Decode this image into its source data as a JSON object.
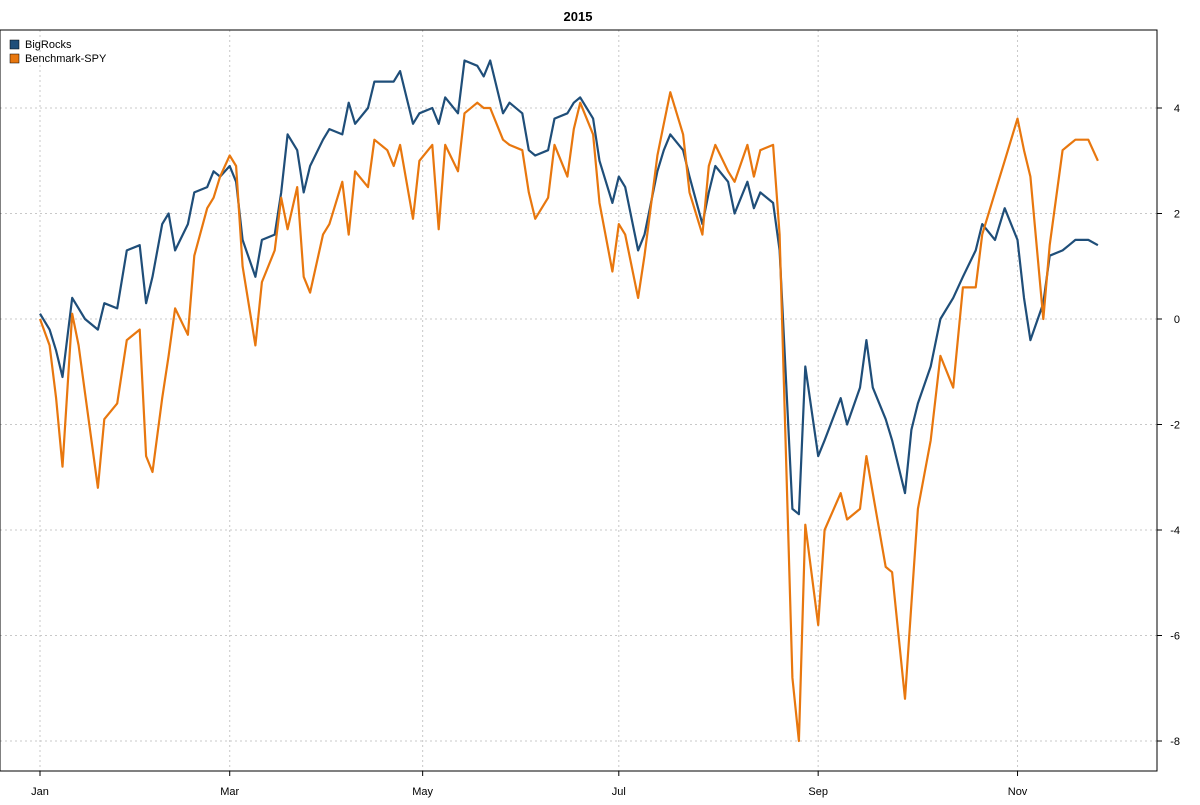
{
  "chart_data": {
    "type": "line",
    "title": "2015",
    "xlabel": "",
    "ylabel": "",
    "x_tick_labels": [
      "Jan",
      "Mar",
      "May",
      "Jul",
      "Sep",
      "Nov"
    ],
    "x_tick_dates": [
      "2015-01-02",
      "2015-03-02",
      "2015-05-01",
      "2015-07-01",
      "2015-09-01",
      "2015-11-02"
    ],
    "xlim": [
      "2015-01-02",
      "2015-12-02"
    ],
    "y_ticks": [
      4,
      2,
      0,
      -2,
      -4,
      -6,
      -8
    ],
    "ylim": [
      -8.5,
      5.5
    ],
    "y_axis_side": "right",
    "grid": true,
    "legend_position": "top-left",
    "series": [
      {
        "name": "BigRocks",
        "color": "#1f4e79",
        "points": [
          [
            "2015-01-02",
            0.1
          ],
          [
            "2015-01-05",
            -0.2
          ],
          [
            "2015-01-07",
            -0.6
          ],
          [
            "2015-01-09",
            -1.1
          ],
          [
            "2015-01-12",
            0.4
          ],
          [
            "2015-01-14",
            0.2
          ],
          [
            "2015-01-16",
            0.0
          ],
          [
            "2015-01-20",
            -0.2
          ],
          [
            "2015-01-22",
            0.3
          ],
          [
            "2015-01-26",
            0.2
          ],
          [
            "2015-01-29",
            1.3
          ],
          [
            "2015-02-02",
            1.4
          ],
          [
            "2015-02-04",
            0.3
          ],
          [
            "2015-02-06",
            0.8
          ],
          [
            "2015-02-09",
            1.8
          ],
          [
            "2015-02-11",
            2.0
          ],
          [
            "2015-02-13",
            1.3
          ],
          [
            "2015-02-17",
            1.8
          ],
          [
            "2015-02-19",
            2.4
          ],
          [
            "2015-02-23",
            2.5
          ],
          [
            "2015-02-25",
            2.8
          ],
          [
            "2015-02-27",
            2.7
          ],
          [
            "2015-03-02",
            2.9
          ],
          [
            "2015-03-04",
            2.6
          ],
          [
            "2015-03-06",
            1.5
          ],
          [
            "2015-03-10",
            0.8
          ],
          [
            "2015-03-12",
            1.5
          ],
          [
            "2015-03-16",
            1.6
          ],
          [
            "2015-03-18",
            2.4
          ],
          [
            "2015-03-20",
            3.5
          ],
          [
            "2015-03-23",
            3.2
          ],
          [
            "2015-03-25",
            2.4
          ],
          [
            "2015-03-27",
            2.9
          ],
          [
            "2015-03-31",
            3.4
          ],
          [
            "2015-04-02",
            3.6
          ],
          [
            "2015-04-06",
            3.5
          ],
          [
            "2015-04-08",
            4.1
          ],
          [
            "2015-04-10",
            3.7
          ],
          [
            "2015-04-14",
            4.0
          ],
          [
            "2015-04-16",
            4.5
          ],
          [
            "2015-04-20",
            4.5
          ],
          [
            "2015-04-22",
            4.5
          ],
          [
            "2015-04-24",
            4.7
          ],
          [
            "2015-04-28",
            3.7
          ],
          [
            "2015-04-30",
            3.9
          ],
          [
            "2015-05-04",
            4.0
          ],
          [
            "2015-05-06",
            3.7
          ],
          [
            "2015-05-08",
            4.2
          ],
          [
            "2015-05-12",
            3.9
          ],
          [
            "2015-05-14",
            4.9
          ],
          [
            "2015-05-18",
            4.8
          ],
          [
            "2015-05-20",
            4.6
          ],
          [
            "2015-05-22",
            4.9
          ],
          [
            "2015-05-26",
            3.9
          ],
          [
            "2015-05-28",
            4.1
          ],
          [
            "2015-06-01",
            3.9
          ],
          [
            "2015-06-03",
            3.2
          ],
          [
            "2015-06-05",
            3.1
          ],
          [
            "2015-06-09",
            3.2
          ],
          [
            "2015-06-11",
            3.8
          ],
          [
            "2015-06-15",
            3.9
          ],
          [
            "2015-06-17",
            4.1
          ],
          [
            "2015-06-19",
            4.2
          ],
          [
            "2015-06-23",
            3.8
          ],
          [
            "2015-06-25",
            3.0
          ],
          [
            "2015-06-29",
            2.2
          ],
          [
            "2015-07-01",
            2.7
          ],
          [
            "2015-07-03",
            2.5
          ],
          [
            "2015-07-07",
            1.3
          ],
          [
            "2015-07-09",
            1.6
          ],
          [
            "2015-07-13",
            2.8
          ],
          [
            "2015-07-15",
            3.2
          ],
          [
            "2015-07-17",
            3.5
          ],
          [
            "2015-07-21",
            3.2
          ],
          [
            "2015-07-23",
            2.7
          ],
          [
            "2015-07-27",
            1.8
          ],
          [
            "2015-07-29",
            2.4
          ],
          [
            "2015-07-31",
            2.9
          ],
          [
            "2015-08-04",
            2.6
          ],
          [
            "2015-08-06",
            2.0
          ],
          [
            "2015-08-10",
            2.6
          ],
          [
            "2015-08-12",
            2.1
          ],
          [
            "2015-08-14",
            2.4
          ],
          [
            "2015-08-18",
            2.2
          ],
          [
            "2015-08-20",
            1.3
          ],
          [
            "2015-08-24",
            -3.6
          ],
          [
            "2015-08-26",
            -3.7
          ],
          [
            "2015-08-28",
            -0.9
          ],
          [
            "2015-09-01",
            -2.6
          ],
          [
            "2015-09-03",
            -2.3
          ],
          [
            "2015-09-08",
            -1.5
          ],
          [
            "2015-09-10",
            -2.0
          ],
          [
            "2015-09-14",
            -1.3
          ],
          [
            "2015-09-16",
            -0.4
          ],
          [
            "2015-09-18",
            -1.3
          ],
          [
            "2015-09-22",
            -1.9
          ],
          [
            "2015-09-24",
            -2.3
          ],
          [
            "2015-09-28",
            -3.3
          ],
          [
            "2015-09-30",
            -2.1
          ],
          [
            "2015-10-02",
            -1.6
          ],
          [
            "2015-10-06",
            -0.9
          ],
          [
            "2015-10-09",
            0.0
          ],
          [
            "2015-10-13",
            0.4
          ],
          [
            "2015-10-16",
            0.8
          ],
          [
            "2015-10-20",
            1.3
          ],
          [
            "2015-10-22",
            1.8
          ],
          [
            "2015-10-26",
            1.5
          ],
          [
            "2015-10-29",
            2.1
          ],
          [
            "2015-11-02",
            1.5
          ],
          [
            "2015-11-04",
            0.4
          ],
          [
            "2015-11-06",
            -0.4
          ],
          [
            "2015-11-10",
            0.3
          ],
          [
            "2015-11-12",
            1.2
          ],
          [
            "2015-11-16",
            1.3
          ],
          [
            "2015-11-18",
            1.4
          ],
          [
            "2015-11-20",
            1.5
          ],
          [
            "2015-11-24",
            1.5
          ],
          [
            "2015-11-27",
            1.4
          ]
        ]
      },
      {
        "name": "Benchmark-SPY",
        "color": "#e8770e",
        "points": [
          [
            "2015-01-02",
            0.0
          ],
          [
            "2015-01-05",
            -0.5
          ],
          [
            "2015-01-07",
            -1.5
          ],
          [
            "2015-01-09",
            -2.8
          ],
          [
            "2015-01-12",
            0.1
          ],
          [
            "2015-01-14",
            -0.5
          ],
          [
            "2015-01-16",
            -1.4
          ],
          [
            "2015-01-20",
            -3.2
          ],
          [
            "2015-01-22",
            -1.9
          ],
          [
            "2015-01-26",
            -1.6
          ],
          [
            "2015-01-29",
            -0.4
          ],
          [
            "2015-02-02",
            -0.2
          ],
          [
            "2015-02-04",
            -2.6
          ],
          [
            "2015-02-06",
            -2.9
          ],
          [
            "2015-02-09",
            -1.5
          ],
          [
            "2015-02-11",
            -0.7
          ],
          [
            "2015-02-13",
            0.2
          ],
          [
            "2015-02-17",
            -0.3
          ],
          [
            "2015-02-19",
            1.2
          ],
          [
            "2015-02-23",
            2.1
          ],
          [
            "2015-02-25",
            2.3
          ],
          [
            "2015-02-27",
            2.7
          ],
          [
            "2015-03-02",
            3.1
          ],
          [
            "2015-03-04",
            2.9
          ],
          [
            "2015-03-06",
            1.0
          ],
          [
            "2015-03-10",
            -0.5
          ],
          [
            "2015-03-12",
            0.7
          ],
          [
            "2015-03-16",
            1.3
          ],
          [
            "2015-03-18",
            2.3
          ],
          [
            "2015-03-20",
            1.7
          ],
          [
            "2015-03-23",
            2.5
          ],
          [
            "2015-03-25",
            0.8
          ],
          [
            "2015-03-27",
            0.5
          ],
          [
            "2015-03-31",
            1.6
          ],
          [
            "2015-04-02",
            1.8
          ],
          [
            "2015-04-06",
            2.6
          ],
          [
            "2015-04-08",
            1.6
          ],
          [
            "2015-04-10",
            2.8
          ],
          [
            "2015-04-14",
            2.5
          ],
          [
            "2015-04-16",
            3.4
          ],
          [
            "2015-04-20",
            3.2
          ],
          [
            "2015-04-22",
            2.9
          ],
          [
            "2015-04-24",
            3.3
          ],
          [
            "2015-04-28",
            1.9
          ],
          [
            "2015-04-30",
            3.0
          ],
          [
            "2015-05-04",
            3.3
          ],
          [
            "2015-05-06",
            1.7
          ],
          [
            "2015-05-08",
            3.3
          ],
          [
            "2015-05-12",
            2.8
          ],
          [
            "2015-05-14",
            3.9
          ],
          [
            "2015-05-18",
            4.1
          ],
          [
            "2015-05-20",
            4.0
          ],
          [
            "2015-05-22",
            4.0
          ],
          [
            "2015-05-26",
            3.4
          ],
          [
            "2015-05-28",
            3.3
          ],
          [
            "2015-06-01",
            3.2
          ],
          [
            "2015-06-03",
            2.4
          ],
          [
            "2015-06-05",
            1.9
          ],
          [
            "2015-06-09",
            2.3
          ],
          [
            "2015-06-11",
            3.3
          ],
          [
            "2015-06-15",
            2.7
          ],
          [
            "2015-06-17",
            3.6
          ],
          [
            "2015-06-19",
            4.1
          ],
          [
            "2015-06-23",
            3.5
          ],
          [
            "2015-06-25",
            2.2
          ],
          [
            "2015-06-29",
            0.9
          ],
          [
            "2015-07-01",
            1.8
          ],
          [
            "2015-07-03",
            1.6
          ],
          [
            "2015-07-07",
            0.4
          ],
          [
            "2015-07-09",
            1.2
          ],
          [
            "2015-07-13",
            3.1
          ],
          [
            "2015-07-15",
            3.7
          ],
          [
            "2015-07-17",
            4.3
          ],
          [
            "2015-07-21",
            3.5
          ],
          [
            "2015-07-23",
            2.4
          ],
          [
            "2015-07-27",
            1.6
          ],
          [
            "2015-07-29",
            2.9
          ],
          [
            "2015-07-31",
            3.3
          ],
          [
            "2015-08-04",
            2.8
          ],
          [
            "2015-08-06",
            2.6
          ],
          [
            "2015-08-10",
            3.3
          ],
          [
            "2015-08-12",
            2.7
          ],
          [
            "2015-08-14",
            3.2
          ],
          [
            "2015-08-18",
            3.3
          ],
          [
            "2015-08-20",
            1.6
          ],
          [
            "2015-08-24",
            -6.8
          ],
          [
            "2015-08-26",
            -8.0
          ],
          [
            "2015-08-28",
            -3.9
          ],
          [
            "2015-09-01",
            -5.8
          ],
          [
            "2015-09-03",
            -4.0
          ],
          [
            "2015-09-08",
            -3.3
          ],
          [
            "2015-09-10",
            -3.8
          ],
          [
            "2015-09-14",
            -3.6
          ],
          [
            "2015-09-16",
            -2.6
          ],
          [
            "2015-09-18",
            -3.3
          ],
          [
            "2015-09-22",
            -4.7
          ],
          [
            "2015-09-24",
            -4.8
          ],
          [
            "2015-09-28",
            -7.2
          ],
          [
            "2015-09-30",
            -5.4
          ],
          [
            "2015-10-02",
            -3.6
          ],
          [
            "2015-10-06",
            -2.3
          ],
          [
            "2015-10-09",
            -0.7
          ],
          [
            "2015-10-13",
            -1.3
          ],
          [
            "2015-10-16",
            0.6
          ],
          [
            "2015-10-20",
            0.6
          ],
          [
            "2015-10-22",
            1.6
          ],
          [
            "2015-10-26",
            2.4
          ],
          [
            "2015-10-29",
            3.0
          ],
          [
            "2015-11-02",
            3.8
          ],
          [
            "2015-11-04",
            3.2
          ],
          [
            "2015-11-06",
            2.7
          ],
          [
            "2015-11-10",
            0.0
          ],
          [
            "2015-11-12",
            1.4
          ],
          [
            "2015-11-16",
            3.2
          ],
          [
            "2015-11-18",
            3.3
          ],
          [
            "2015-11-20",
            3.4
          ],
          [
            "2015-11-24",
            3.4
          ],
          [
            "2015-11-27",
            3.0
          ]
        ]
      }
    ]
  }
}
